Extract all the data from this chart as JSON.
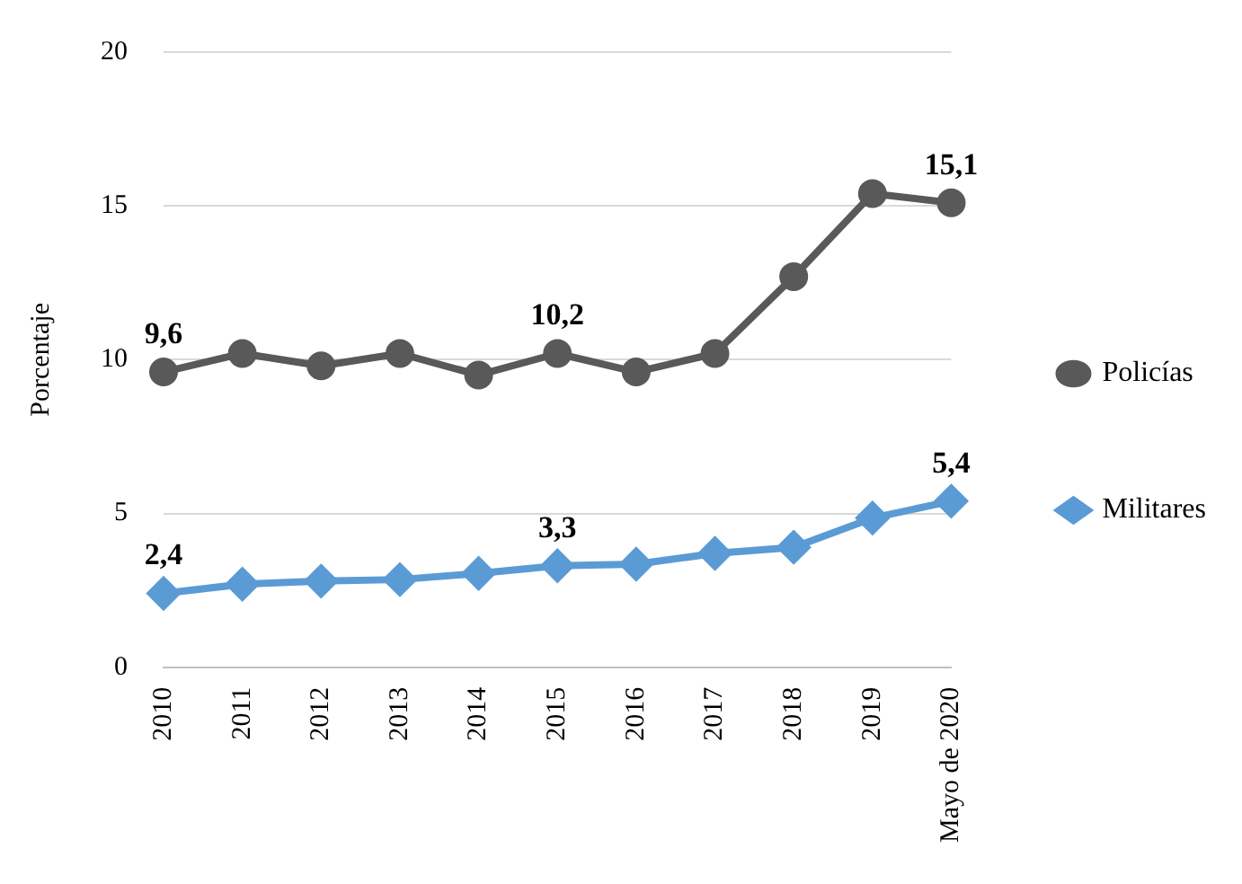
{
  "chart_data": {
    "type": "line",
    "ylabel": "Porcentaje",
    "categories": [
      "2010",
      "2011",
      "2012",
      "2013",
      "2014",
      "2015",
      "2016",
      "2017",
      "2018",
      "2019",
      "Mayo de 2020"
    ],
    "series": [
      {
        "name": "Policías",
        "color": "#595959",
        "marker": "circle",
        "values": [
          9.6,
          10.2,
          9.8,
          10.2,
          9.5,
          10.2,
          9.6,
          10.2,
          12.7,
          15.4,
          15.1
        ],
        "value_labels": [
          "9,6",
          null,
          null,
          null,
          null,
          "10,2",
          null,
          null,
          null,
          null,
          "15,1"
        ]
      },
      {
        "name": "Militares",
        "color": "#5b9bd5",
        "marker": "diamond",
        "values": [
          2.4,
          2.7,
          2.8,
          2.85,
          3.05,
          3.3,
          3.35,
          3.7,
          3.9,
          4.85,
          5.4
        ],
        "value_labels": [
          "2,4",
          null,
          null,
          null,
          null,
          "3,3",
          null,
          null,
          null,
          null,
          "5,4"
        ]
      }
    ],
    "ylim": [
      0,
      20
    ],
    "yticks": [
      0,
      5,
      10,
      15,
      20
    ],
    "grid": "y",
    "legend": "right",
    "line_style": "solid"
  }
}
